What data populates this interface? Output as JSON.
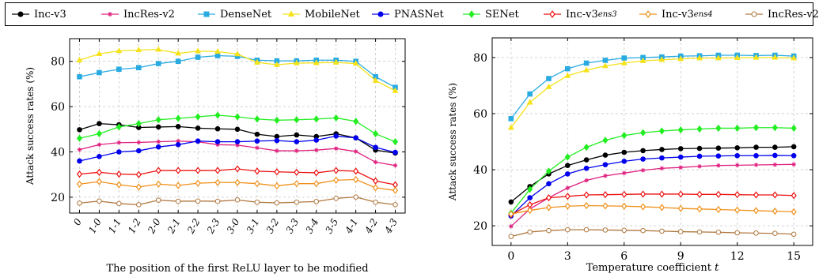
{
  "legend": [
    {
      "label": "Inc-v3",
      "sub": "",
      "color": "#000000",
      "marker": "circle"
    },
    {
      "label": "IncRes-v2",
      "sub": "",
      "color": "#e0207f",
      "marker": "star"
    },
    {
      "label": "DenseNet",
      "sub": "",
      "color": "#29abe2",
      "marker": "square"
    },
    {
      "label": "MobileNet",
      "sub": "",
      "color": "#f5e21a",
      "marker": "triangle"
    },
    {
      "label": "PNASNet",
      "sub": "",
      "color": "#0000ee",
      "marker": "circle"
    },
    {
      "label": "SENet",
      "sub": "",
      "color": "#22ee22",
      "marker": "diamond"
    },
    {
      "label": "Inc-v3",
      "sub": "ens3",
      "color": "#ee1111",
      "marker": "diamond-open"
    },
    {
      "label": "Inc-v3",
      "sub": "ens4",
      "color": "#f0901a",
      "marker": "diamond-open"
    },
    {
      "label": "IncRes-v2",
      "sub": "ens",
      "color": "#b07840",
      "marker": "circle-open"
    }
  ],
  "chart_data": [
    {
      "type": "line",
      "xlabel": "The position of the first ReLU layer to be modified",
      "ylabel": "Attack success rates (%)",
      "ylim": [
        13,
        90
      ],
      "yticks": [
        20,
        40,
        60,
        80
      ],
      "grid": true,
      "categories": [
        "0",
        "1-0",
        "1-1",
        "1-2",
        "2-0",
        "2-1",
        "2-2",
        "2-3",
        "3-0",
        "3-1",
        "3-2",
        "3-3",
        "3-4",
        "3-5",
        "4-1",
        "4-2",
        "4-3"
      ],
      "series": [
        {
          "name": "Inc-v3",
          "values": [
            49.8,
            52.5,
            52,
            50.8,
            51,
            51.2,
            50.5,
            50.2,
            50,
            47.8,
            46.8,
            47.5,
            46.8,
            48,
            46.2,
            40.8,
            39.5
          ]
        },
        {
          "name": "IncRes-v2",
          "values": [
            41,
            43.2,
            44.1,
            44.2,
            44.5,
            44.8,
            44.5,
            43.2,
            43,
            41.8,
            40.5,
            40.5,
            40.8,
            41.5,
            40.2,
            35.5,
            34
          ]
        },
        {
          "name": "DenseNet",
          "values": [
            73.2,
            75,
            76.5,
            77.2,
            79,
            80,
            81.8,
            82.5,
            82.2,
            80.5,
            80.2,
            80.2,
            80.5,
            80.5,
            80,
            73.2,
            68.5
          ]
        },
        {
          "name": "MobileNet",
          "values": [
            80.5,
            83.3,
            84.6,
            85,
            85.2,
            83.5,
            84.5,
            84.3,
            83.2,
            79.5,
            78.5,
            79.2,
            79.3,
            79.5,
            79,
            71.5,
            67
          ]
        },
        {
          "name": "PNASNet",
          "values": [
            36,
            38,
            40,
            40.5,
            42.2,
            43.2,
            44.8,
            44.5,
            44.5,
            44.8,
            45,
            44.5,
            45.2,
            47,
            46.2,
            42,
            39.8
          ]
        },
        {
          "name": "SENet",
          "values": [
            46,
            48,
            51,
            52.5,
            54.2,
            54.8,
            55.5,
            56.2,
            55.5,
            54.5,
            54,
            54.2,
            54.5,
            55,
            53.5,
            48,
            44.5
          ]
        },
        {
          "name": "Inc-v3ens3",
          "values": [
            30.2,
            31,
            30.2,
            30,
            31.8,
            31.8,
            31.8,
            31.8,
            32.5,
            31.5,
            31.2,
            31,
            30.8,
            31.8,
            31.5,
            27.2,
            25.5
          ]
        },
        {
          "name": "Inc-v3ens4",
          "values": [
            25.8,
            26.9,
            25.5,
            24.5,
            25.8,
            25.2,
            26.2,
            26.5,
            26.5,
            26,
            25,
            26,
            26,
            27.5,
            27.8,
            24.2,
            23
          ]
        },
        {
          "name": "IncRes-v2ens",
          "values": [
            17.4,
            18.3,
            17.2,
            16.7,
            18.7,
            18.2,
            18.3,
            18.2,
            18.8,
            17.8,
            17.5,
            17.8,
            18.1,
            19.5,
            20.1,
            17.8,
            16.7
          ]
        }
      ]
    },
    {
      "type": "line",
      "xlabel": "Temperature coefficient",
      "xlabel_var": "t",
      "ylabel": "Attack success rates (%)",
      "xlim": [
        -1,
        16
      ],
      "ylim": [
        13,
        87
      ],
      "xticks": [
        0,
        3,
        6,
        9,
        12,
        15
      ],
      "yticks": [
        20,
        40,
        60,
        80
      ],
      "grid": true,
      "x": [
        0,
        1,
        2,
        3,
        4,
        5,
        6,
        7,
        8,
        9,
        10,
        11,
        12,
        13,
        14,
        15
      ],
      "series": [
        {
          "name": "Inc-v3",
          "values": [
            28.5,
            34,
            38.5,
            41.5,
            43.5,
            45.2,
            46.2,
            46.8,
            47.2,
            47.5,
            47.6,
            47.7,
            47.8,
            48,
            48,
            48.2
          ]
        },
        {
          "name": "IncRes-v2",
          "values": [
            19.8,
            26,
            30,
            33.5,
            36.2,
            37.8,
            38.8,
            39.8,
            40.5,
            40.8,
            41.2,
            41.5,
            41.6,
            41.7,
            41.8,
            41.9
          ]
        },
        {
          "name": "DenseNet",
          "values": [
            58.2,
            67,
            72.5,
            76,
            78,
            79,
            79.8,
            80,
            80.2,
            80.5,
            80.6,
            80.8,
            80.8,
            80.7,
            80.8,
            80.5
          ]
        },
        {
          "name": "MobileNet",
          "values": [
            55,
            64,
            69.5,
            73.5,
            75.5,
            77,
            78,
            78.8,
            79.2,
            79.5,
            79.8,
            79.8,
            79.9,
            80,
            80,
            79.8
          ]
        },
        {
          "name": "PNASNet",
          "values": [
            23.5,
            30,
            35,
            38.5,
            40.5,
            41.8,
            43,
            43.8,
            44.2,
            44.5,
            44.8,
            44.9,
            45,
            45,
            45.1,
            45
          ]
        },
        {
          "name": "SENet",
          "values": [
            24.5,
            33,
            39.5,
            44.5,
            48,
            50.5,
            52.2,
            53.2,
            53.8,
            54.2,
            54.5,
            54.8,
            54.8,
            55,
            55,
            54.8
          ]
        },
        {
          "name": "Inc-v3ens3",
          "values": [
            24,
            27.5,
            30,
            30.5,
            31,
            31.1,
            31.2,
            31.3,
            31.3,
            31.3,
            31.2,
            31.2,
            31.1,
            31,
            31,
            30.8
          ]
        },
        {
          "name": "Inc-v3ens4",
          "values": [
            24.2,
            25.5,
            26.5,
            27,
            27.2,
            27.1,
            27,
            26.8,
            26.5,
            26.2,
            26,
            25.8,
            25.6,
            25.4,
            25.2,
            25
          ]
        },
        {
          "name": "IncRes-v2ens",
          "values": [
            16.2,
            17.8,
            18.3,
            18.6,
            18.6,
            18.5,
            18.4,
            18.3,
            18.1,
            17.9,
            17.8,
            17.7,
            17.5,
            17.4,
            17.3,
            17
          ]
        }
      ]
    }
  ]
}
